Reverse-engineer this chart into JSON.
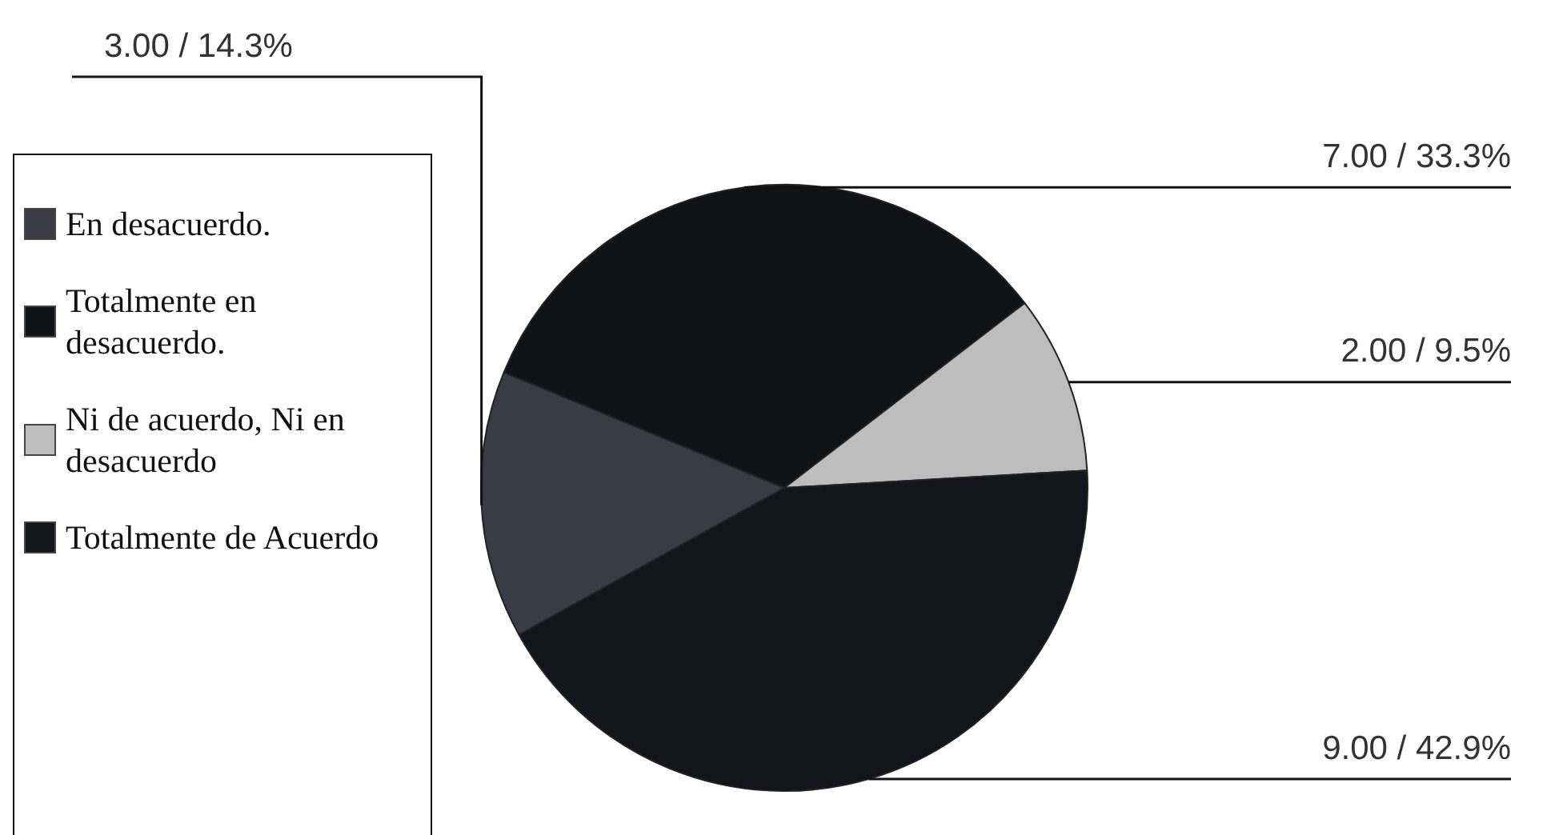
{
  "chart_data": {
    "type": "pie",
    "categories": [
      "En desacuerdo.",
      "Totalmente en desacuerdo.",
      "Ni de acuerdo, Ni en desacuerdo",
      "Totalmente de Acuerdo"
    ],
    "values": [
      3,
      7,
      2,
      9
    ],
    "colors": [
      "#3b3b46",
      "#111118",
      "#bdbdbd",
      "#14141d"
    ],
    "value_labels": [
      "3.00 / 14.3%",
      "7.00 / 33.3%",
      "2.00 / 9.5%",
      "9.00 / 42.9%"
    ],
    "legend": "left"
  }
}
